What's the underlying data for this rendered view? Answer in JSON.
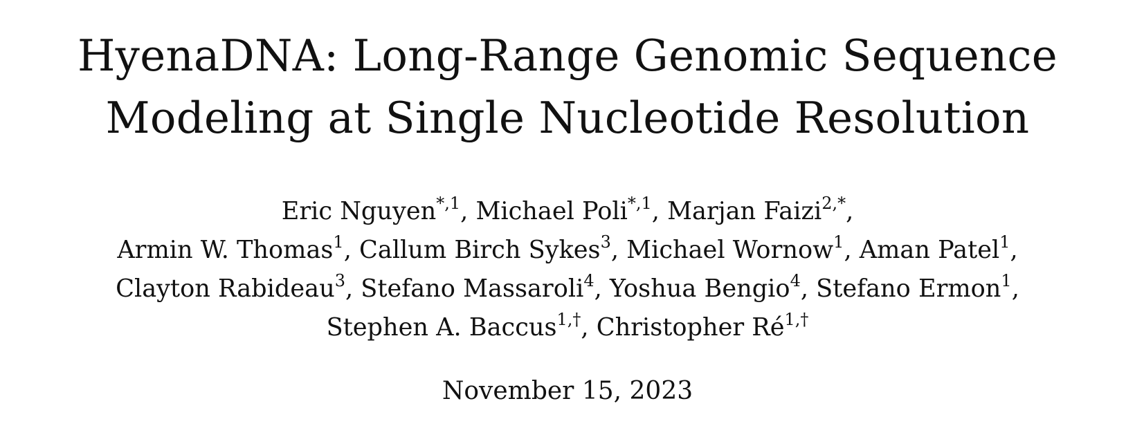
{
  "paper": {
    "title_lines": [
      "HyenaDNA: Long-Range Genomic Sequence",
      "Modeling at Single Nucleotide Resolution"
    ],
    "author_lines": [
      [
        {
          "name": "Eric Nguyen",
          "sup": "*,1",
          "sep": ", "
        },
        {
          "name": "Michael Poli",
          "sup": "*,1",
          "sep": ", "
        },
        {
          "name": "Marjan Faizi",
          "sup": "2,*",
          "sep": ","
        }
      ],
      [
        {
          "name": "Armin W. Thomas",
          "sup": "1",
          "sep": ", "
        },
        {
          "name": "Callum Birch Sykes",
          "sup": "3",
          "sep": ", "
        },
        {
          "name": "Michael Wornow",
          "sup": "1",
          "sep": ", "
        },
        {
          "name": "Aman Patel",
          "sup": "1",
          "sep": ","
        }
      ],
      [
        {
          "name": "Clayton Rabideau",
          "sup": "3",
          "sep": ", "
        },
        {
          "name": "Stefano Massaroli",
          "sup": "4",
          "sep": ", "
        },
        {
          "name": "Yoshua Bengio",
          "sup": "4",
          "sep": ", "
        },
        {
          "name": "Stefano Ermon",
          "sup": "1",
          "sep": ","
        }
      ],
      [
        {
          "name": "Stephen A. Baccus",
          "sup": "1,†",
          "sep": ", "
        },
        {
          "name": "Christopher Ré",
          "sup": "1,†",
          "sep": ""
        }
      ]
    ],
    "date": "November 15, 2023"
  }
}
